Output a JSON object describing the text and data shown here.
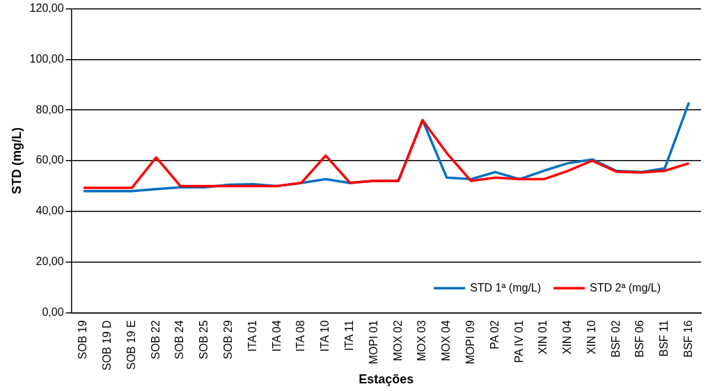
{
  "chart_data": {
    "type": "line",
    "xlabel": "Estações",
    "ylabel": "STD (mg/L)",
    "categories": [
      "SOB 19",
      "SOB 19 D",
      "SOB 19 E",
      "SOB 22",
      "SOB 24",
      "SOB 25",
      "SOB 29",
      "ITA 01",
      "ITA 04",
      "ITA 08",
      "ITA 10",
      "ITA 11",
      "MOPI 01",
      "MOX 02",
      "MOX 03",
      "MOX 04",
      "MOPI 09",
      "PA 02",
      "PA IV 01",
      "XIN 01",
      "XIN 04",
      "XIN 10",
      "BSF 02",
      "BSF 06",
      "BSF 11",
      "BSF 16"
    ],
    "series": [
      {
        "name": "STD 1ª (mg/L)",
        "color": "#0070c0",
        "values": [
          48,
          48,
          48,
          48.8,
          49.5,
          49.5,
          50.5,
          50.7,
          50,
          51.2,
          52.7,
          51.2,
          52,
          52,
          76,
          53.3,
          52.7,
          55.5,
          52.7,
          56,
          59,
          60.5,
          56,
          55.5,
          57,
          83
        ]
      },
      {
        "name": "STD 2ª (mg/L)",
        "color": "#ff0000",
        "values": [
          49.3,
          49.3,
          49.3,
          61.3,
          50,
          50,
          50,
          50,
          50,
          51.3,
          62,
          51.3,
          52,
          52,
          76,
          63,
          52,
          53.3,
          52.7,
          52.7,
          56,
          60,
          55.7,
          55.3,
          56,
          59
        ]
      }
    ],
    "ylim": [
      0,
      120
    ],
    "yticks": [
      {
        "value": 0,
        "label": "0,00"
      },
      {
        "value": 20,
        "label": "20,00"
      },
      {
        "value": 40,
        "label": "40,00"
      },
      {
        "value": 60,
        "label": "60,00"
      },
      {
        "value": 80,
        "label": "80,00"
      },
      {
        "value": 100,
        "label": "100,00"
      },
      {
        "value": 120,
        "label": "120,00"
      }
    ],
    "grid": "y",
    "legend": "bottom right",
    "marker": "none",
    "line_style": "solid"
  }
}
